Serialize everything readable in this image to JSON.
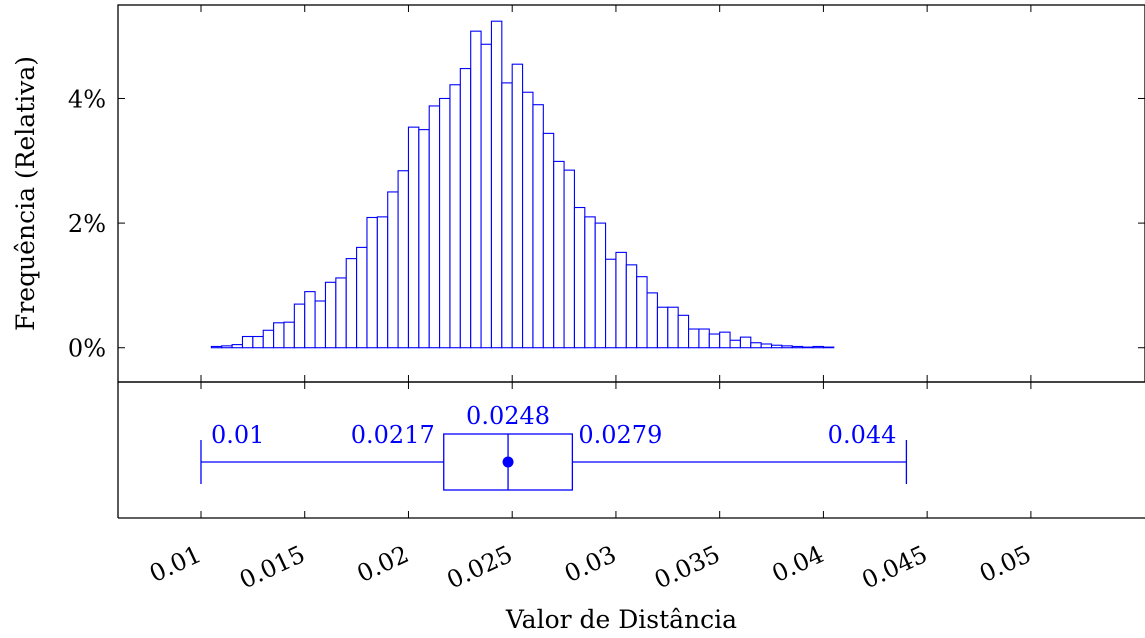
{
  "chart_data": [
    {
      "type": "bar",
      "subtype": "histogram",
      "ylabel": "Frequência (Relativa)",
      "y_tick_labels": [
        "0%",
        "2%",
        "4%"
      ],
      "y_tick_values": [
        0,
        2,
        4
      ],
      "ylim": [
        -0.55,
        5.5
      ],
      "xlim": [
        0.006,
        0.0555
      ],
      "bin_start": 0.01,
      "bin_width": 0.0005,
      "values": [
        0.0,
        0.02,
        0.03,
        0.05,
        0.18,
        0.18,
        0.28,
        0.4,
        0.41,
        0.7,
        0.9,
        0.75,
        1.05,
        1.12,
        1.43,
        1.61,
        2.09,
        2.1,
        2.5,
        2.84,
        3.54,
        3.5,
        3.88,
        4.0,
        4.22,
        4.48,
        5.08,
        4.87,
        5.24,
        4.25,
        4.55,
        4.1,
        3.9,
        3.44,
        2.99,
        2.85,
        2.25,
        2.1,
        2.0,
        1.42,
        1.53,
        1.33,
        1.14,
        0.88,
        0.65,
        0.65,
        0.52,
        0.3,
        0.3,
        0.22,
        0.25,
        0.12,
        0.17,
        0.08,
        0.06,
        0.04,
        0.03,
        0.02,
        0.01,
        0.02,
        0.01
      ],
      "color": "#0000ff",
      "grid": false
    },
    {
      "type": "boxplot",
      "xlabel": "Valor de Distância",
      "x_tick_labels": [
        "0.01",
        "0.015",
        "0.02",
        "0.025",
        "0.03",
        "0.035",
        "0.04",
        "0.045",
        "0.05"
      ],
      "x_tick_values": [
        0.01,
        0.015,
        0.02,
        0.025,
        0.03,
        0.035,
        0.04,
        0.045,
        0.05
      ],
      "min": 0.01,
      "q1": 0.0217,
      "median": 0.0248,
      "mean": 0.0248,
      "q3": 0.0279,
      "max": 0.044,
      "labels": {
        "min": "0.01",
        "q1": "0.0217",
        "median": "0.0248",
        "q3": "0.0279",
        "max": "0.044"
      },
      "color": "#0000ff"
    }
  ]
}
